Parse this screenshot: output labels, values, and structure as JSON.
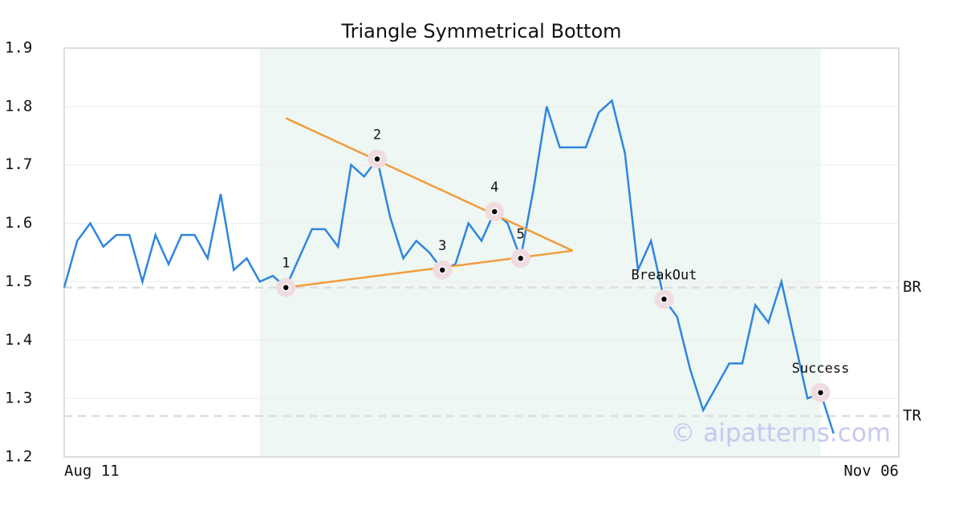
{
  "chart_data": {
    "type": "line",
    "title": "Triangle Symmetrical Bottom",
    "categories": [
      "Aug 11",
      null,
      null,
      null,
      null,
      null,
      null,
      null,
      null,
      null,
      null,
      null,
      null,
      null,
      null,
      null,
      null,
      null,
      null,
      null,
      null,
      null,
      null,
      null,
      null,
      null,
      null,
      null,
      null,
      null,
      null,
      null,
      null,
      null,
      null,
      null,
      null,
      null,
      null,
      null,
      null,
      null,
      null,
      null,
      null,
      null,
      null,
      null,
      null,
      null,
      null,
      null,
      null,
      null,
      null,
      null,
      null,
      null,
      null,
      null,
      null,
      null,
      null,
      null,
      "Nov 06"
    ],
    "series": [
      {
        "color": "#2e86de",
        "values": [
          1.49,
          1.57,
          1.6,
          1.56,
          1.58,
          1.58,
          1.5,
          1.58,
          1.53,
          1.58,
          1.58,
          1.54,
          1.65,
          1.52,
          1.54,
          1.5,
          1.51,
          1.49,
          1.54,
          1.59,
          1.59,
          1.56,
          1.7,
          1.68,
          1.71,
          1.61,
          1.54,
          1.57,
          1.55,
          1.52,
          1.53,
          1.6,
          1.57,
          1.62,
          1.6,
          1.54,
          1.66,
          1.8,
          1.73,
          1.73,
          1.73,
          1.79,
          1.81,
          1.72,
          1.52,
          1.57,
          1.47,
          1.44,
          1.35,
          1.28,
          1.32,
          1.36,
          1.36,
          1.46,
          1.43,
          1.5,
          1.4,
          1.3,
          1.31,
          1.24,
          null,
          null,
          null,
          null,
          null
        ]
      }
    ],
    "ylim": [
      1.2,
      1.9
    ],
    "yticks": [
      1.2,
      1.3,
      1.4,
      1.5,
      1.6,
      1.7,
      1.8,
      1.9
    ],
    "grid": true,
    "highlight_range": [
      15,
      58
    ],
    "trendlines": [
      {
        "color": "#f39c3c",
        "x": [
          17,
          39
        ],
        "values": [
          1.78,
          1.553
        ]
      },
      {
        "color": "#f39c3c",
        "x": [
          17,
          39
        ],
        "values": [
          1.49,
          1.553
        ]
      }
    ],
    "points": [
      {
        "label": "1",
        "x": 17,
        "value": 1.49
      },
      {
        "label": "2",
        "x": 24,
        "value": 1.71
      },
      {
        "label": "3",
        "x": 29,
        "value": 1.52
      },
      {
        "label": "4",
        "x": 33,
        "value": 1.62
      },
      {
        "label": "5",
        "x": 35,
        "value": 1.54
      },
      {
        "label": "BreakOut",
        "x": 46,
        "value": 1.47
      },
      {
        "label": "Success",
        "x": 58,
        "value": 1.31
      }
    ],
    "reference_lines": [
      {
        "label": "BR",
        "value": 1.49
      },
      {
        "label": "TR",
        "value": 1.27
      }
    ],
    "watermark": "© aipatterns.com"
  }
}
